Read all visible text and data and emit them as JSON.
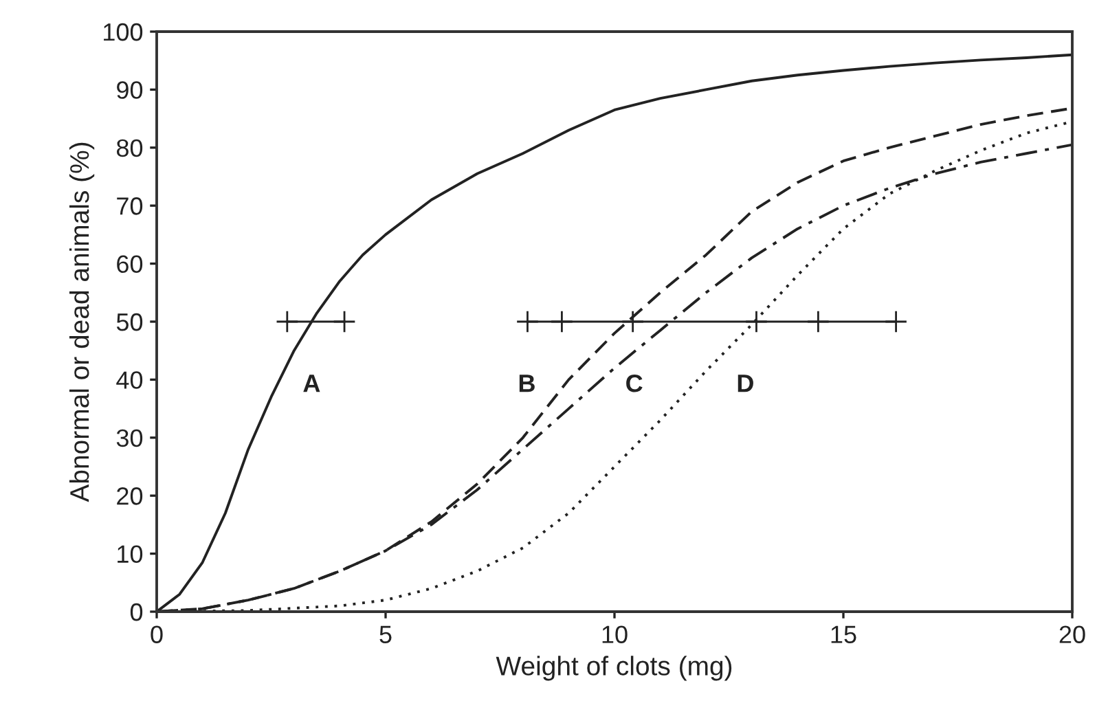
{
  "chart_data": {
    "type": "line",
    "xlabel": "Weight of clots (mg)",
    "ylabel": "Abnormal or dead animals (%)",
    "xlim": [
      0,
      20
    ],
    "ylim": [
      0,
      100
    ],
    "xticks": [
      0,
      5,
      10,
      15,
      20
    ],
    "yticks": [
      0,
      10,
      20,
      30,
      40,
      50,
      60,
      70,
      80,
      90,
      100
    ],
    "grid": false,
    "legend": false,
    "series": [
      {
        "name": "A",
        "color": "#222222",
        "line_style": "solid",
        "x": [
          0,
          0.5,
          1,
          1.5,
          2,
          2.5,
          3,
          3.5,
          4,
          4.5,
          5,
          6,
          7,
          8,
          9,
          10,
          11,
          12,
          13,
          14,
          15,
          16,
          17,
          18,
          19,
          20
        ],
        "values": [
          0,
          3,
          8.5,
          17,
          28,
          37,
          45,
          51.5,
          57,
          61.5,
          65,
          71,
          75.5,
          79,
          83,
          86.5,
          88.5,
          90,
          91.5,
          92.5,
          93.3,
          94,
          94.6,
          95.1,
          95.5,
          96
        ]
      },
      {
        "name": "B",
        "color": "#222222",
        "line_style": "dashed",
        "x": [
          0,
          1,
          2,
          3,
          4,
          5,
          6,
          7,
          8,
          9,
          10,
          11,
          12,
          13,
          14,
          15,
          16,
          17,
          18,
          19,
          20
        ],
        "values": [
          0,
          0.5,
          2,
          4,
          7,
          10.5,
          15.5,
          22,
          30,
          40,
          48,
          55,
          61.5,
          69,
          74,
          77.7,
          80,
          82,
          84,
          85.5,
          86.8
        ]
      },
      {
        "name": "C",
        "color": "#222222",
        "line_style": "dashdot",
        "x": [
          0,
          1,
          2,
          3,
          4,
          5,
          6,
          7,
          8,
          9,
          10,
          11,
          12,
          13,
          14,
          15,
          16,
          17,
          18,
          19,
          20
        ],
        "values": [
          0,
          0.5,
          2,
          4,
          7,
          10.5,
          15,
          21,
          28,
          35,
          42,
          48.5,
          55,
          61,
          66,
          70,
          73,
          75.5,
          77.5,
          79,
          80.5
        ]
      },
      {
        "name": "D",
        "color": "#222222",
        "line_style": "dotted",
        "x": [
          0,
          2,
          4,
          5,
          6,
          7,
          8,
          9,
          10,
          11,
          12,
          13,
          14,
          15,
          16,
          17,
          18,
          19,
          20
        ],
        "values": [
          0,
          0.2,
          1,
          2,
          4,
          7,
          11,
          17,
          25,
          33,
          41.5,
          49.5,
          58,
          66,
          72,
          76,
          79.5,
          82.5,
          84.5
        ]
      },
      {
        "color": "#222222",
        "line_style": "solid",
        "marker": "cross",
        "x": [
          2.85,
          4.1
        ],
        "values": [
          50,
          50
        ]
      },
      {
        "color": "#222222",
        "line_style": "solid",
        "marker": "cross",
        "x": [
          8.1,
          8.85,
          10.4,
          13.1,
          14.45,
          16.15
        ],
        "values": [
          50,
          50,
          50,
          50,
          50,
          50
        ]
      }
    ]
  }
}
